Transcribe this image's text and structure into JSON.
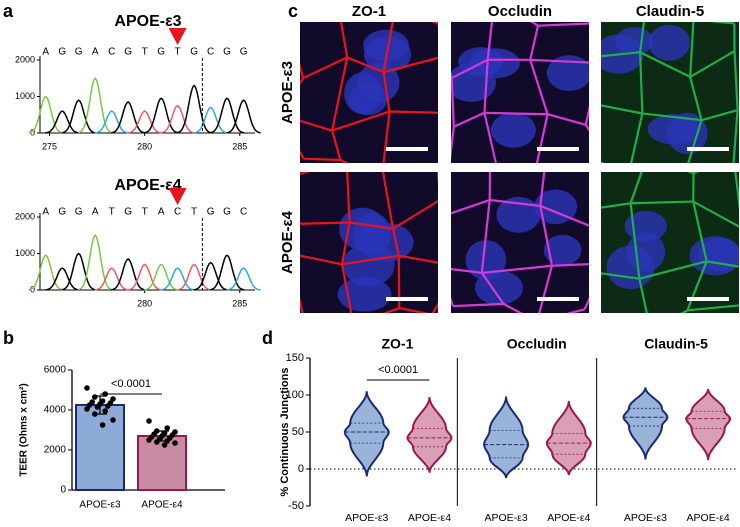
{
  "panel_labels": [
    "a",
    "b",
    "c",
    "d"
  ],
  "images": {
    "columns": [
      "ZO-1",
      "Occludin",
      "Claudin-5"
    ],
    "column_colors": [
      "#e8141c",
      "#d63ad6",
      "#1fae48"
    ],
    "rows": [
      "APOE-ε3",
      "APOE-ε4"
    ]
  },
  "chart_data": [
    {
      "type": "chromatogram",
      "title": "APOE-ε3",
      "bases": [
        "A",
        "G",
        "G",
        "A",
        "C",
        "G",
        "T",
        "G",
        "T",
        "G",
        "C",
        "G",
        "G"
      ],
      "base_colors": {
        "A": "#7ac943",
        "C": "#29abe2",
        "G": "#000000",
        "T": "#f15a5a"
      },
      "x": [
        274.8,
        275.67,
        276.53,
        277.4,
        278.27,
        279.13,
        280.0,
        280.87,
        281.73,
        282.6,
        283.47,
        284.33,
        285.2
      ],
      "values": [
        1000,
        600,
        900,
        1500,
        600,
        850,
        600,
        950,
        750,
        1300,
        700,
        950,
        900
      ],
      "xlim": [
        274.5,
        285.8
      ],
      "xticks": [
        275,
        280,
        285
      ],
      "ylim": [
        0,
        2000
      ],
      "yticks": [
        0,
        1000,
        2000
      ]
    },
    {
      "type": "chromatogram",
      "title": "APOE-ε4",
      "bases": [
        "A",
        "G",
        "G",
        "A",
        "T",
        "G",
        "T",
        "A",
        "C",
        "T",
        "G",
        "G",
        "C"
      ],
      "base_colors": {
        "A": "#7ac943",
        "C": "#29abe2",
        "G": "#000000",
        "T": "#f15a5a"
      },
      "x": [
        274.8,
        275.67,
        276.53,
        277.4,
        278.27,
        279.13,
        280.0,
        280.87,
        281.73,
        282.6,
        283.47,
        284.33,
        285.2
      ],
      "values": [
        950,
        600,
        1000,
        1500,
        600,
        850,
        700,
        700,
        600,
        700,
        750,
        950,
        600
      ],
      "xlim": [
        274.5,
        285.8
      ],
      "xticks": [
        280,
        285
      ],
      "ylim": [
        0,
        2000
      ],
      "yticks": [
        0,
        1000,
        2000
      ]
    },
    {
      "type": "bar",
      "ylabel": "TEER (Ohms x cm²)",
      "categories": [
        "APOE-ε3",
        "APOE-ε4"
      ],
      "values": [
        4250,
        2700
      ],
      "errors": [
        450,
        250
      ],
      "points": [
        [
          5100,
          4800,
          4650,
          4550,
          4450,
          4400,
          4350,
          4300,
          4250,
          4200,
          4150,
          4050,
          3950,
          3800,
          3500,
          3250
        ],
        [
          3450,
          3100,
          2950,
          2900,
          2850,
          2800,
          2750,
          2700,
          2650,
          2600,
          2550,
          2500,
          2450,
          2400,
          2350,
          2250
        ]
      ],
      "colors": [
        "#8eaad6",
        "#c98aa6"
      ],
      "edge_colors": [
        "#1b2a78",
        "#9a1650"
      ],
      "ylim": [
        0,
        6000
      ],
      "yticks": [
        0,
        2000,
        4000,
        6000
      ],
      "annotation": "<0.0001"
    },
    {
      "type": "violin",
      "ylabel": "% Continuous Junctions",
      "categories": [
        "APOE-ε3",
        "APOE-ε4"
      ],
      "colors": [
        "#9ab3d8",
        "#d9a0b5"
      ],
      "edge_colors": [
        "#1b2a78",
        "#9a1650"
      ],
      "ylim": [
        -50,
        150
      ],
      "yticks": [
        -50,
        0,
        50,
        100,
        150
      ],
      "reference_line": 0,
      "groups": [
        {
          "title": "ZO-1",
          "title_color": "#e8141c",
          "annotation": "<0.0001",
          "min": [
            -10,
            -5
          ],
          "q1": [
            35,
            30
          ],
          "median": [
            50,
            42
          ],
          "q3": [
            62,
            55
          ],
          "max": [
            105,
            97
          ]
        },
        {
          "title": "Occludin",
          "title_color": "#d63ad6",
          "min": [
            -12,
            -8
          ],
          "q1": [
            15,
            20
          ],
          "median": [
            33,
            35
          ],
          "q3": [
            52,
            48
          ],
          "max": [
            98,
            92
          ]
        },
        {
          "title": "Claudin-5",
          "title_color": "#1fae48",
          "min": [
            13,
            12
          ],
          "q1": [
            58,
            55
          ],
          "median": [
            70,
            68
          ],
          "q3": [
            82,
            78
          ],
          "max": [
            110,
            108
          ]
        }
      ]
    }
  ]
}
